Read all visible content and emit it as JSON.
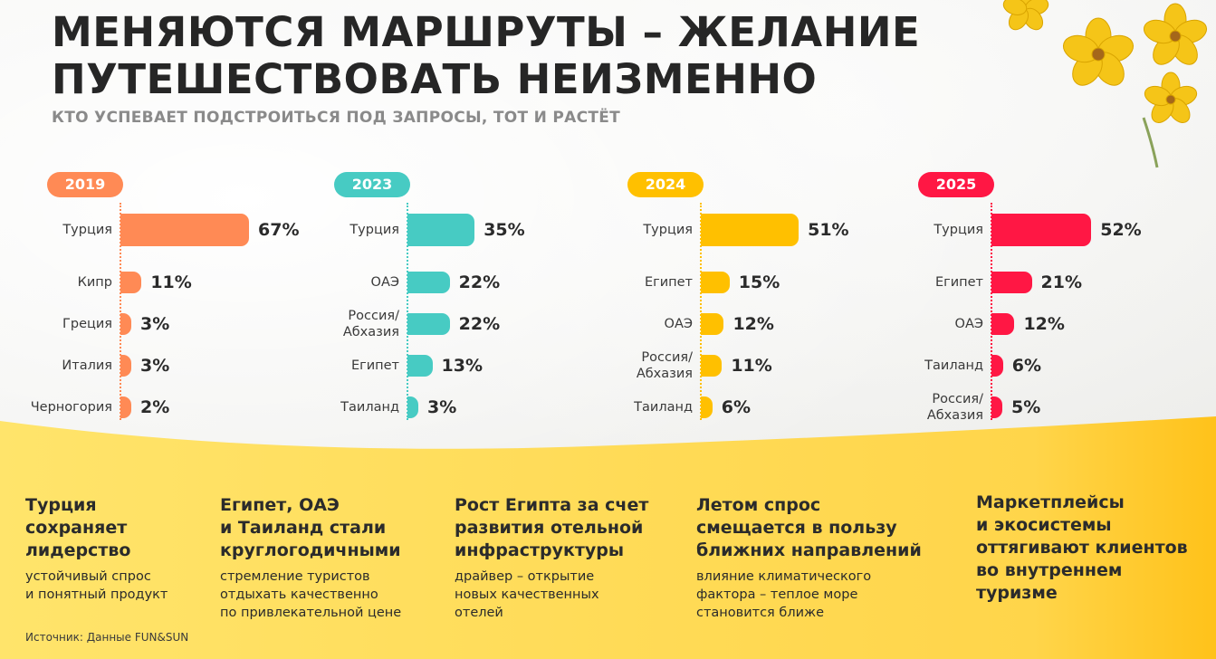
{
  "title_line1": "МЕНЯЮТСЯ МАРШРУТЫ – ЖЕЛАНИЕ",
  "title_line2": "ПУТЕШЕСТВОВАТЬ НЕИЗМЕННО",
  "subtitle": "КТО УСПЕВАЕТ ПОДСТРОИТЬСЯ ПОД ЗАПРОСЫ, ТОТ И РАСТЁТ",
  "colors": {
    "2019": "#ff8a55",
    "2023": "#47cbc3",
    "2024": "#ffc000",
    "2025": "#ff1744",
    "band": "#ffd84a"
  },
  "chart_data": [
    {
      "type": "bar",
      "title": "2019",
      "categories": [
        "Турция",
        "Кипр",
        "Греция",
        "Италия",
        "Черногория"
      ],
      "values": [
        67,
        11,
        3,
        3,
        2
      ],
      "labels": [
        "67%",
        "11%",
        "3%",
        "3%",
        "2%"
      ]
    },
    {
      "type": "bar",
      "title": "2023",
      "categories": [
        "Турция",
        "ОАЭ",
        "Россия/\nАбхазия",
        "Египет",
        "Таиланд"
      ],
      "values": [
        35,
        22,
        22,
        13,
        3
      ],
      "labels": [
        "35%",
        "22%",
        "22%",
        "13%",
        "3%"
      ]
    },
    {
      "type": "bar",
      "title": "2024",
      "categories": [
        "Турция",
        "Египет",
        "ОАЭ",
        "Россия/\nАбхазия",
        "Таиланд"
      ],
      "values": [
        51,
        15,
        12,
        11,
        6
      ],
      "labels": [
        "51%",
        "15%",
        "12%",
        "11%",
        "6%"
      ]
    },
    {
      "type": "bar",
      "title": "2025",
      "categories": [
        "Турция",
        "Египет",
        "ОАЭ",
        "Таиланд",
        "Россия/\nАбхазия"
      ],
      "values": [
        52,
        21,
        12,
        6,
        5
      ],
      "labels": [
        "52%",
        "21%",
        "12%",
        "6%",
        "5%"
      ]
    }
  ],
  "notes": [
    {
      "heading": "Турция\nсохраняет\nлидерство",
      "text": "устойчивый спрос\nи понятный продукт"
    },
    {
      "heading": "Египет, ОАЭ\nи Таиланд стали\nкруглогодичными",
      "text": "стремление туристов\nотдыхать качественно\nпо привлекательной цене"
    },
    {
      "heading": "Рост Египта за счет\nразвития отельной\nинфраструктуры",
      "text": "драйвер – открытие\nновых качественных\nотелей"
    },
    {
      "heading": "Летом спрос\nсмещается в пользу\nближних направлений",
      "text": "влияние климатического\nфактора – теплое море\nстановится ближе"
    },
    {
      "heading": "Маркетплейсы\nи экосистемы\nоттягивают клиентов\nво внутреннем\nтуризме",
      "text": ""
    }
  ],
  "source": "Источник: Данные FUN&SUN"
}
